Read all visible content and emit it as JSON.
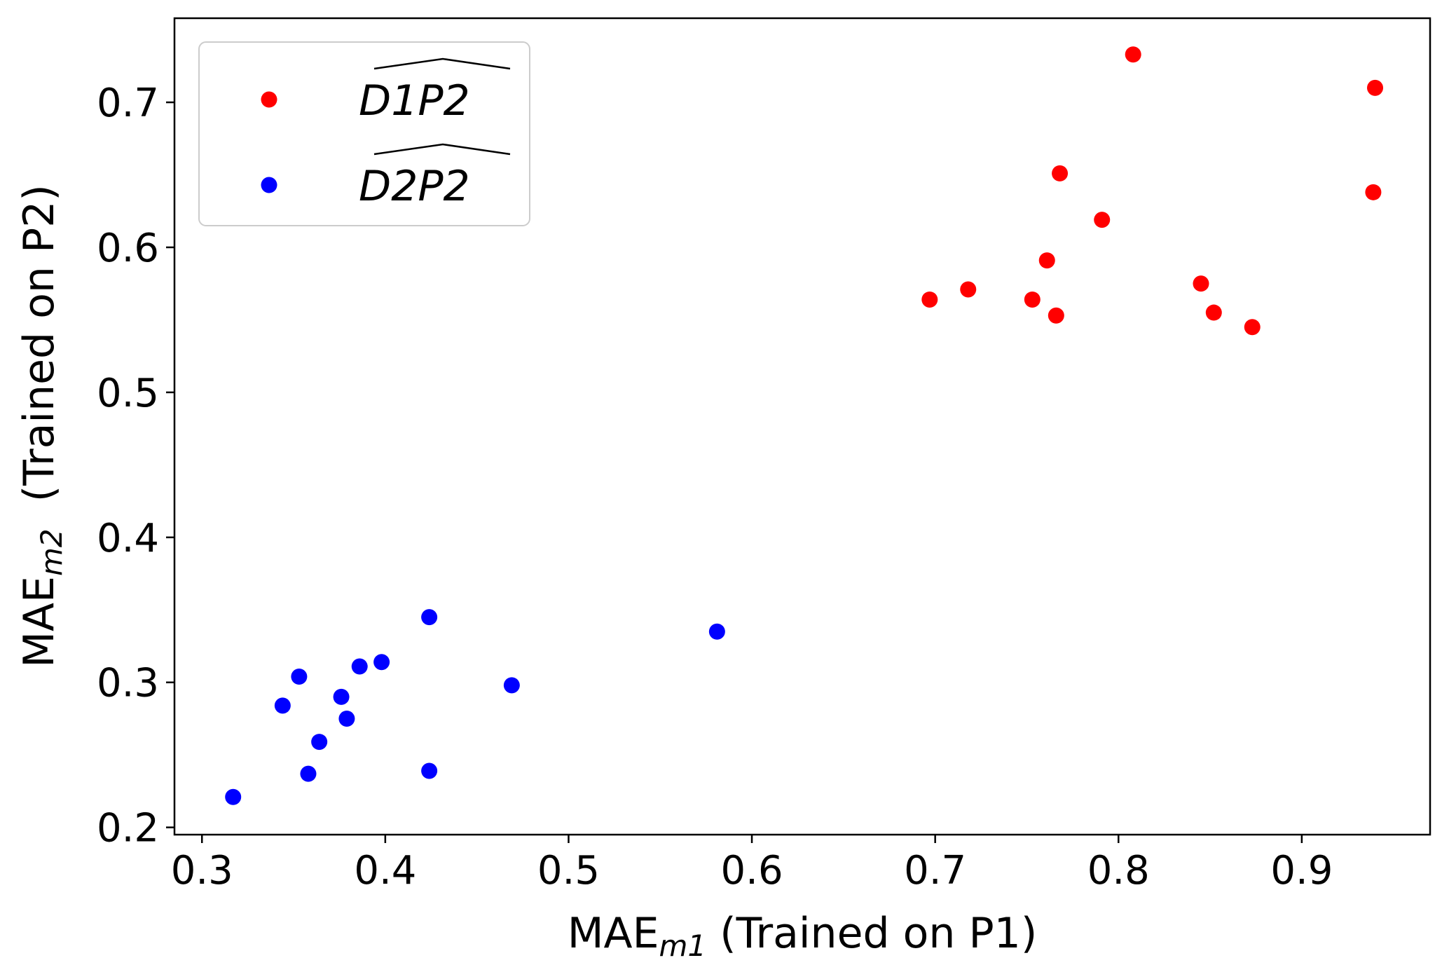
{
  "chart_data": {
    "type": "scatter",
    "title": "",
    "xlabel": {
      "base": "MAE",
      "subscript": "m1",
      "suffix": " (Trained on P1)"
    },
    "ylabel": {
      "base": "MAE",
      "subscript": "m2",
      "suffix": "  (Trained on P2)"
    },
    "xlim": [
      0.285,
      0.97
    ],
    "ylim": [
      0.195,
      0.758
    ],
    "xticks": [
      0.3,
      0.4,
      0.5,
      0.6,
      0.7,
      0.8,
      0.9
    ],
    "xtick_labels": [
      "0.3",
      "0.4",
      "0.5",
      "0.6",
      "0.7",
      "0.8",
      "0.9"
    ],
    "yticks": [
      0.2,
      0.3,
      0.4,
      0.5,
      0.6,
      0.7
    ],
    "ytick_labels": [
      "0.2",
      "0.3",
      "0.4",
      "0.5",
      "0.6",
      "0.7"
    ],
    "grid": false,
    "legend_position": "top-left",
    "series": [
      {
        "name": "D1P2",
        "name_decoration": "widehat",
        "color": "#ff0000",
        "points": [
          {
            "x": 0.697,
            "y": 0.564
          },
          {
            "x": 0.718,
            "y": 0.571
          },
          {
            "x": 0.753,
            "y": 0.564
          },
          {
            "x": 0.761,
            "y": 0.591
          },
          {
            "x": 0.766,
            "y": 0.553
          },
          {
            "x": 0.768,
            "y": 0.651
          },
          {
            "x": 0.791,
            "y": 0.619
          },
          {
            "x": 0.808,
            "y": 0.733
          },
          {
            "x": 0.845,
            "y": 0.575
          },
          {
            "x": 0.852,
            "y": 0.555
          },
          {
            "x": 0.873,
            "y": 0.545
          },
          {
            "x": 0.939,
            "y": 0.638
          },
          {
            "x": 0.94,
            "y": 0.71
          }
        ]
      },
      {
        "name": "D2P2",
        "name_decoration": "widehat",
        "color": "#0000ff",
        "points": [
          {
            "x": 0.317,
            "y": 0.221
          },
          {
            "x": 0.344,
            "y": 0.284
          },
          {
            "x": 0.353,
            "y": 0.304
          },
          {
            "x": 0.358,
            "y": 0.237
          },
          {
            "x": 0.364,
            "y": 0.259
          },
          {
            "x": 0.376,
            "y": 0.29
          },
          {
            "x": 0.379,
            "y": 0.275
          },
          {
            "x": 0.386,
            "y": 0.311
          },
          {
            "x": 0.398,
            "y": 0.314
          },
          {
            "x": 0.424,
            "y": 0.345
          },
          {
            "x": 0.424,
            "y": 0.239
          },
          {
            "x": 0.469,
            "y": 0.298
          },
          {
            "x": 0.581,
            "y": 0.335
          }
        ]
      }
    ]
  }
}
